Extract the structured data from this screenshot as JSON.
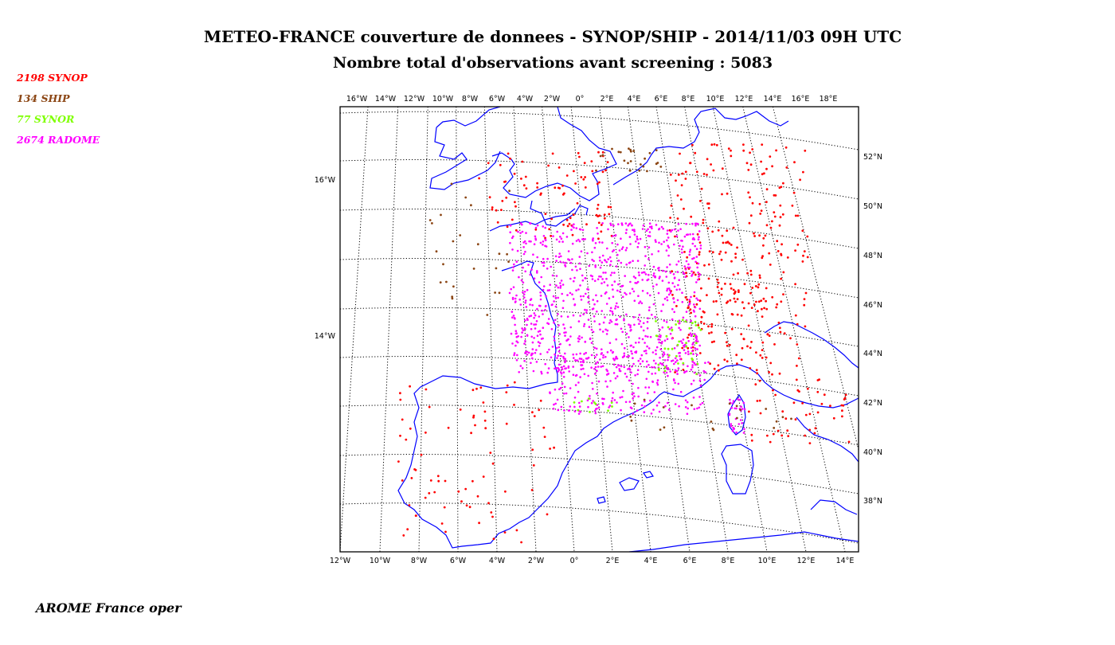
{
  "header": {
    "title": "METEO-FRANCE couverture de donnees - SYNOP/SHIP - 2014/11/03 09H UTC",
    "subtitle": "Nombre total d'observations avant screening : 5083"
  },
  "legend": [
    {
      "count": "2198",
      "label": "SYNOP",
      "text": "2198  SYNOP",
      "color": "#ff0000"
    },
    {
      "count": "134",
      "label": "SHIP",
      "text": "134  SHIP",
      "color": "#8b4513"
    },
    {
      "count": "77",
      "label": "SYNOR",
      "text": "77  SYNOR",
      "color": "#7fff00"
    },
    {
      "count": "2674",
      "label": "RADOME",
      "text": "2674  RADOME",
      "color": "#ff00ff"
    }
  ],
  "footer": "AROME France oper",
  "map": {
    "coastline_color": "#0000ff",
    "graticule_style": "dotted black",
    "top_lon_labels": [
      "16°W",
      "14°W",
      "12°W",
      "10°W",
      "8°W",
      "6°W",
      "4°W",
      "2°W",
      "0°",
      "2°E",
      "4°E",
      "6°E",
      "8°E",
      "10°E",
      "12°E",
      "14°E",
      "16°E",
      "18°E"
    ],
    "bottom_lon_labels": [
      "12°W",
      "10°W",
      "8°W",
      "6°W",
      "4°W",
      "2°W",
      "0°",
      "2°E",
      "4°E",
      "6°E",
      "8°E",
      "10°E",
      "12°E",
      "14°E"
    ],
    "right_lat_labels": [
      "52°N",
      "50°N",
      "48°N",
      "46°N",
      "44°N",
      "42°N",
      "40°N",
      "38°N"
    ],
    "left_lat_labels": [
      "16°W",
      "14°W"
    ]
  }
}
